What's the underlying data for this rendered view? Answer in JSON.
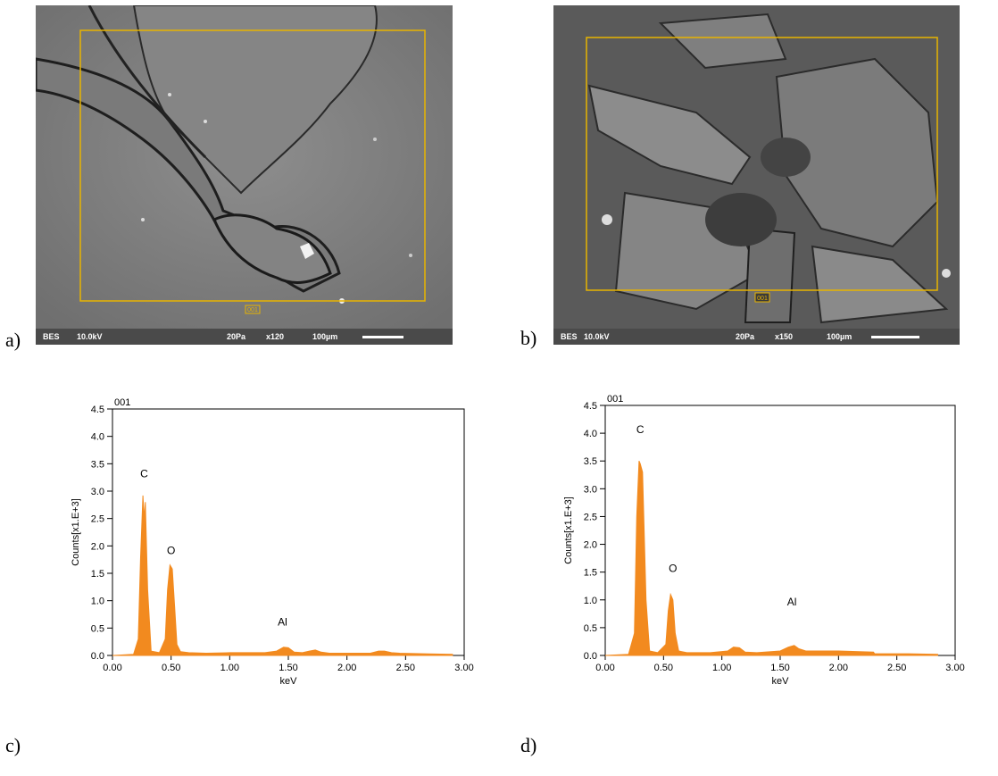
{
  "panels": {
    "a": "a)",
    "b": "b)",
    "c": "c)",
    "d": "d)"
  },
  "sem_images": [
    {
      "detector": "BES",
      "voltage": "10.0kV",
      "pressure": "20Pa",
      "magnification": "x120",
      "scale": "100µm",
      "roi_label": "001",
      "colors": {
        "roi": "#e8b400",
        "info_bar": "#4a4a4a"
      }
    },
    {
      "detector": "BES",
      "voltage": "10.0kV",
      "pressure": "20Pa",
      "magnification": "x150",
      "scale": "100µm",
      "roi_label": "001",
      "colors": {
        "roi": "#e8b400",
        "info_bar": "#4a4a4a"
      }
    }
  ],
  "chart_data": [
    {
      "type": "area",
      "title": "001",
      "xlabel": "keV",
      "ylabel": "Counts[x1.E+3]",
      "xlim": [
        0,
        3.0
      ],
      "ylim": [
        0,
        4.5
      ],
      "xticks": [
        "0.00",
        "0.50",
        "1.00",
        "1.50",
        "2.00",
        "2.50",
        "3.00"
      ],
      "yticks": [
        "0.0",
        "0.5",
        "1.0",
        "1.5",
        "2.0",
        "2.5",
        "3.0",
        "3.5",
        "4.0",
        "4.5"
      ],
      "grid": false,
      "color": "#f28a1f",
      "series": [
        {
          "x": [
            0.0,
            0.18,
            0.22,
            0.24,
            0.26,
            0.27,
            0.28,
            0.3,
            0.33,
            0.4,
            0.45,
            0.47,
            0.49,
            0.51,
            0.53,
            0.55,
            0.58,
            0.65,
            0.8,
            1.0,
            1.3,
            1.4,
            1.46,
            1.5,
            1.55,
            1.62,
            1.68,
            1.73,
            1.78,
            1.85,
            2.0,
            2.2,
            2.27,
            2.32,
            2.38,
            2.45,
            2.7,
            2.9
          ],
          "y": [
            0.0,
            0.02,
            0.3,
            1.8,
            2.92,
            2.5,
            2.8,
            1.2,
            0.08,
            0.05,
            0.3,
            1.2,
            1.65,
            1.58,
            0.9,
            0.2,
            0.07,
            0.05,
            0.04,
            0.05,
            0.05,
            0.08,
            0.15,
            0.14,
            0.06,
            0.05,
            0.08,
            0.1,
            0.06,
            0.04,
            0.04,
            0.04,
            0.08,
            0.08,
            0.05,
            0.04,
            0.03,
            0.02
          ]
        }
      ],
      "annotations": [
        {
          "text": "C",
          "x": 0.27,
          "y": 3.25
        },
        {
          "text": "O",
          "x": 0.5,
          "y": 1.85
        },
        {
          "text": "Al",
          "x": 1.45,
          "y": 0.55
        }
      ]
    },
    {
      "type": "area",
      "title": "001",
      "xlabel": "keV",
      "ylabel": "Counts[x1.E+3]",
      "xlim": [
        0,
        3.0
      ],
      "ylim": [
        0,
        4.5
      ],
      "xticks": [
        "0.00",
        "0.50",
        "1.00",
        "1.50",
        "2.00",
        "2.50",
        "3.00"
      ],
      "yticks": [
        "0.0",
        "0.5",
        "1.0",
        "1.5",
        "2.0",
        "2.5",
        "3.0",
        "3.5",
        "4.0",
        "4.5"
      ],
      "grid": false,
      "color": "#f28a1f",
      "series": [
        {
          "x": [
            0.0,
            0.2,
            0.25,
            0.27,
            0.29,
            0.3,
            0.32,
            0.35,
            0.38,
            0.45,
            0.52,
            0.54,
            0.56,
            0.58,
            0.6,
            0.63,
            0.7,
            0.9,
            1.05,
            1.1,
            1.15,
            1.2,
            1.3,
            1.5,
            1.57,
            1.62,
            1.66,
            1.72,
            1.8,
            2.0,
            2.3,
            2.31,
            2.6,
            2.85
          ],
          "y": [
            0.0,
            0.02,
            0.4,
            2.5,
            3.5,
            3.45,
            3.3,
            1.0,
            0.08,
            0.05,
            0.2,
            0.8,
            1.1,
            1.0,
            0.4,
            0.08,
            0.05,
            0.05,
            0.08,
            0.15,
            0.14,
            0.06,
            0.05,
            0.08,
            0.15,
            0.18,
            0.12,
            0.08,
            0.08,
            0.08,
            0.06,
            0.03,
            0.03,
            0.02
          ]
        }
      ],
      "annotations": [
        {
          "text": "C",
          "x": 0.3,
          "y": 4.0
        },
        {
          "text": "O",
          "x": 0.58,
          "y": 1.5
        },
        {
          "text": "Al",
          "x": 1.6,
          "y": 0.9
        }
      ]
    }
  ]
}
